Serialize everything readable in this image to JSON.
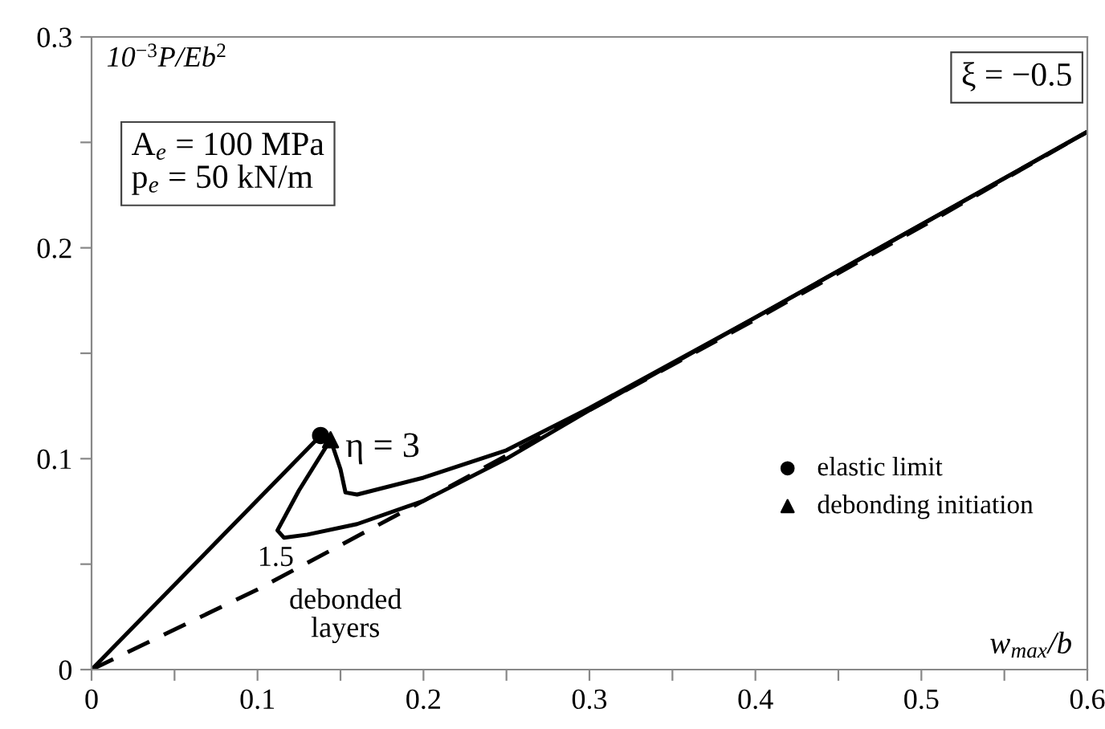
{
  "chart_data": {
    "type": "line",
    "xlabel": "w$_{max}$/b",
    "ylabel": "10$^{−3}$P/Eb$^{2}$",
    "xlim": [
      0,
      0.6
    ],
    "ylim": [
      0,
      0.3
    ],
    "xticks": [
      0,
      {
        "value": 0.05,
        "label": null
      },
      0.1,
      {
        "value": 0.15,
        "label": null
      },
      0.2,
      {
        "value": 0.25,
        "label": null
      },
      0.3,
      {
        "value": 0.35,
        "label": null
      },
      0.4,
      {
        "value": 0.45,
        "label": null
      },
      0.5,
      {
        "value": 0.55,
        "label": null
      },
      0.6
    ],
    "yticks": [
      0,
      {
        "value": 0.05,
        "label": null
      },
      0.1,
      {
        "value": 0.15,
        "label": null
      },
      0.2,
      {
        "value": 0.25,
        "label": null
      },
      0.3
    ],
    "grid": false,
    "legend": "bottom right",
    "series": [
      {
        "color": "#000000",
        "line_style": "solid",
        "x": [
          0,
          0.138,
          0.144
        ],
        "values": [
          0,
          0.111,
          0.109
        ]
      },
      {
        "color": "#000000",
        "line_style": "solid",
        "x": [
          0.144,
          0.15,
          0.153,
          0.16,
          0.2,
          0.25,
          0.3,
          0.4,
          0.5,
          0.6
        ],
        "values": [
          0.109,
          0.095,
          0.084,
          0.083,
          0.091,
          0.104,
          0.124,
          0.167,
          0.211,
          0.255
        ]
      },
      {
        "color": "#000000",
        "line_style": "solid",
        "x": [
          0.144,
          0.125,
          0.112,
          0.116,
          0.13,
          0.16,
          0.2,
          0.25,
          0.3,
          0.4,
          0.5,
          0.6
        ],
        "values": [
          0.109,
          0.085,
          0.066,
          0.0625,
          0.064,
          0.069,
          0.08,
          0.1,
          0.123,
          0.167,
          0.211,
          0.255
        ]
      },
      {
        "color": "#000000",
        "line_style": "dashed",
        "x": [
          0,
          0.1,
          0.2,
          0.3,
          0.4,
          0.5,
          0.6
        ],
        "values": [
          0,
          0.038,
          0.08,
          0.123,
          0.166,
          0.21,
          0.255
        ]
      },
      {
        "type": "scatter",
        "name": "elastic limit",
        "color": "#000000",
        "marker": "circle",
        "x": [
          0.138
        ],
        "values": [
          0.111
        ]
      },
      {
        "type": "scatter",
        "name": "debonding initiation",
        "color": "#000000",
        "marker": "triangle",
        "x": [
          0.144
        ],
        "values": [
          0.109
        ]
      }
    ],
    "annotations": [
      {
        "text": "η = 3",
        "x": 0.153,
        "y": 0.105
      },
      "1.5",
      "debonded\nlayers",
      "A$_{e}$ = 100 MPa\np$_{e}$ = 50 kN/m",
      "ξ = −0.5"
    ]
  }
}
